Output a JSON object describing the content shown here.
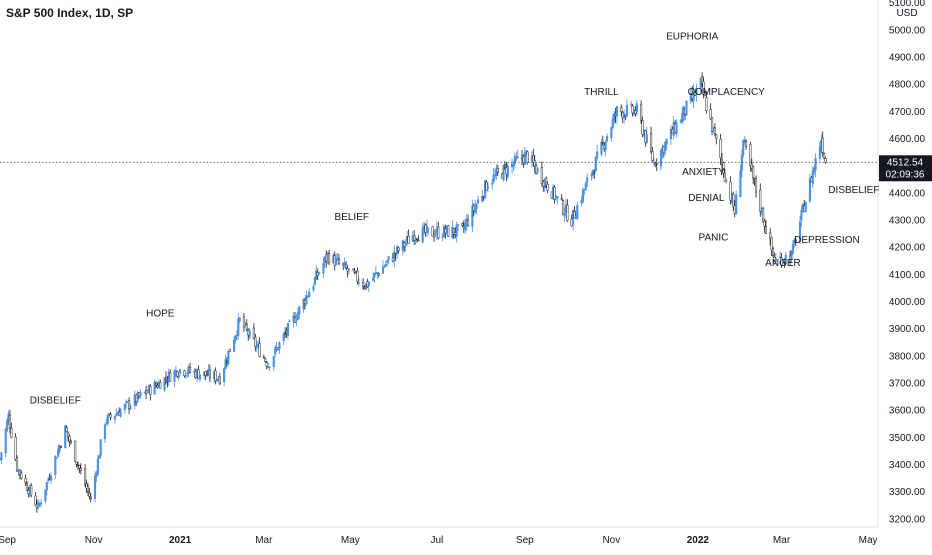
{
  "chart_data": {
    "type": "candlestick",
    "title": "S&P 500 Index, 1D, SP",
    "currency": "USD",
    "y_axis": {
      "ticks": [
        "3200.00",
        "3300.00",
        "3400.00",
        "3500.00",
        "3600.00",
        "3700.00",
        "3800.00",
        "3900.00",
        "4000.00",
        "4100.00",
        "4200.00",
        "4300.00",
        "4400.00",
        "4500.00",
        "4600.00",
        "4700.00",
        "4800.00",
        "4900.00",
        "5000.00",
        "5100.00"
      ],
      "range": [
        3170,
        5110
      ],
      "position": "right"
    },
    "x_axis": {
      "labels": [
        {
          "text": "Sep",
          "date": "2020-09-01",
          "bold": false
        },
        {
          "text": "Nov",
          "date": "2020-11-01",
          "bold": false
        },
        {
          "text": "2021",
          "date": "2021-01-01",
          "bold": true
        },
        {
          "text": "Mar",
          "date": "2021-03-01",
          "bold": false
        },
        {
          "text": "May",
          "date": "2021-05-01",
          "bold": false
        },
        {
          "text": "Jul",
          "date": "2021-07-01",
          "bold": false
        },
        {
          "text": "Sep",
          "date": "2021-09-01",
          "bold": false
        },
        {
          "text": "Nov",
          "date": "2021-11-01",
          "bold": false
        },
        {
          "text": "2022",
          "date": "2022-01-01",
          "bold": true
        },
        {
          "text": "Mar",
          "date": "2022-03-01",
          "bold": false
        },
        {
          "text": "May",
          "date": "2022-05-01",
          "bold": false
        }
      ],
      "range": [
        "2020-08-27",
        "2022-05-08"
      ]
    },
    "price_path": [
      [
        "2020-08-27",
        3420
      ],
      [
        "2020-09-02",
        3580
      ],
      [
        "2020-09-08",
        3390
      ],
      [
        "2020-09-23",
        3240
      ],
      [
        "2020-10-12",
        3530
      ],
      [
        "2020-10-30",
        3270
      ],
      [
        "2020-11-09",
        3560
      ],
      [
        "2020-12-31",
        3750
      ],
      [
        "2021-01-29",
        3720
      ],
      [
        "2021-02-12",
        3930
      ],
      [
        "2021-03-04",
        3770
      ],
      [
        "2021-03-26",
        3970
      ],
      [
        "2021-04-15",
        4170
      ],
      [
        "2021-05-12",
        4060
      ],
      [
        "2021-06-15",
        4250
      ],
      [
        "2021-07-19",
        4260
      ],
      [
        "2021-08-06",
        4440
      ],
      [
        "2021-09-02",
        4540
      ],
      [
        "2021-10-04",
        4300
      ],
      [
        "2021-11-05",
        4700
      ],
      [
        "2021-11-19",
        4700
      ],
      [
        "2021-12-01",
        4510
      ],
      [
        "2022-01-03",
        4800
      ],
      [
        "2022-01-27",
        4330
      ],
      [
        "2022-02-02",
        4590
      ],
      [
        "2022-02-24",
        4150
      ],
      [
        "2022-03-08",
        4170
      ],
      [
        "2022-03-29",
        4600
      ],
      [
        "2022-04-01",
        4512.54
      ]
    ],
    "last_price": {
      "value": 4512.54,
      "label": "4512.54",
      "countdown": "02:09:36"
    },
    "annotations": [
      {
        "text": "DISBELIEF",
        "date": "2020-10-05",
        "price": 3625
      },
      {
        "text": "HOPE",
        "date": "2020-12-18",
        "price": 3945
      },
      {
        "text": "BELIEF",
        "date": "2021-05-02",
        "price": 4300
      },
      {
        "text": "THRILL",
        "date": "2021-10-25",
        "price": 4760
      },
      {
        "text": "EUPHORIA",
        "date": "2021-12-28",
        "price": 4965
      },
      {
        "text": "COMPLACENCY",
        "date": "2022-01-21",
        "price": 4760
      },
      {
        "text": "ANXIETY",
        "date": "2022-01-05",
        "price": 4465
      },
      {
        "text": "DENIAL",
        "date": "2022-01-07",
        "price": 4370
      },
      {
        "text": "PANIC",
        "date": "2022-01-12",
        "price": 4225
      },
      {
        "text": "ANGER",
        "date": "2022-03-02",
        "price": 4130
      },
      {
        "text": "DEPRESSION",
        "date": "2022-04-02",
        "price": 4215
      },
      {
        "text": "DISBELIEF",
        "date": "2022-04-21",
        "price": 4400
      }
    ],
    "colors": {
      "up": "#4a90e2",
      "down": "#1e1e1e",
      "text": "#131722",
      "axis": "#e0e3eb",
      "price_line": "#555555",
      "price_tag": "#131722"
    },
    "grid": false,
    "legend": "none"
  }
}
